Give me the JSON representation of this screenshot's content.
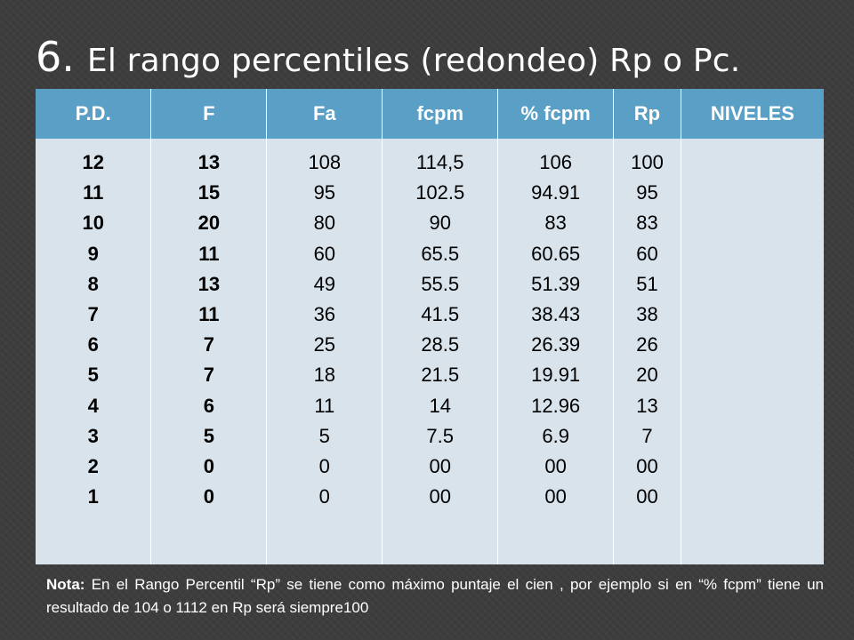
{
  "title": {
    "number": "6.",
    "text": "El rango percentiles (redondeo) Rp  o  Pc."
  },
  "table": {
    "headers": [
      "P.D.",
      "F",
      "Fa",
      "fcpm",
      "% fcpm",
      "Rp",
      "NIVELES"
    ],
    "columns": {
      "pd": [
        "12",
        "11",
        "10",
        "9",
        "8",
        "7",
        "6",
        "5",
        "4",
        "3",
        "2",
        "1"
      ],
      "f": [
        "13",
        "15",
        "20",
        "11",
        "13",
        "11",
        "7",
        "7",
        "6",
        "5",
        "0",
        "0"
      ],
      "fa": [
        "108",
        "95",
        "80",
        "60",
        "49",
        "36",
        "25",
        "18",
        "11",
        "5",
        "0",
        "0"
      ],
      "fcpm": [
        "114,5",
        "102.5",
        "90",
        "65.5",
        "55.5",
        "41.5",
        "28.5",
        "21.5",
        "14",
        "7.5",
        "00",
        "00"
      ],
      "pct_fcpm": [
        "106",
        "94.91",
        "83",
        "60.65",
        "51.39",
        "38.43",
        "26.39",
        "19.91",
        "12.96",
        "6.9",
        "00",
        "00"
      ],
      "rp": [
        "100",
        "95",
        "83",
        "60",
        "51",
        "38",
        "26",
        "20",
        "13",
        "7",
        "00",
        "00"
      ],
      "niveles": []
    }
  },
  "note": {
    "label": "Nota:",
    "text": " En el Rango Percentil “Rp” se tiene como máximo puntaje el cien , por ejemplo si en “% fcpm” tiene un resultado de 104 o 1112  en Rp será  siempre100"
  },
  "colors": {
    "header_bg": "#5a9fc6",
    "body_bg": "#d9e3ec",
    "slide_bg": "#3d3d3d"
  }
}
